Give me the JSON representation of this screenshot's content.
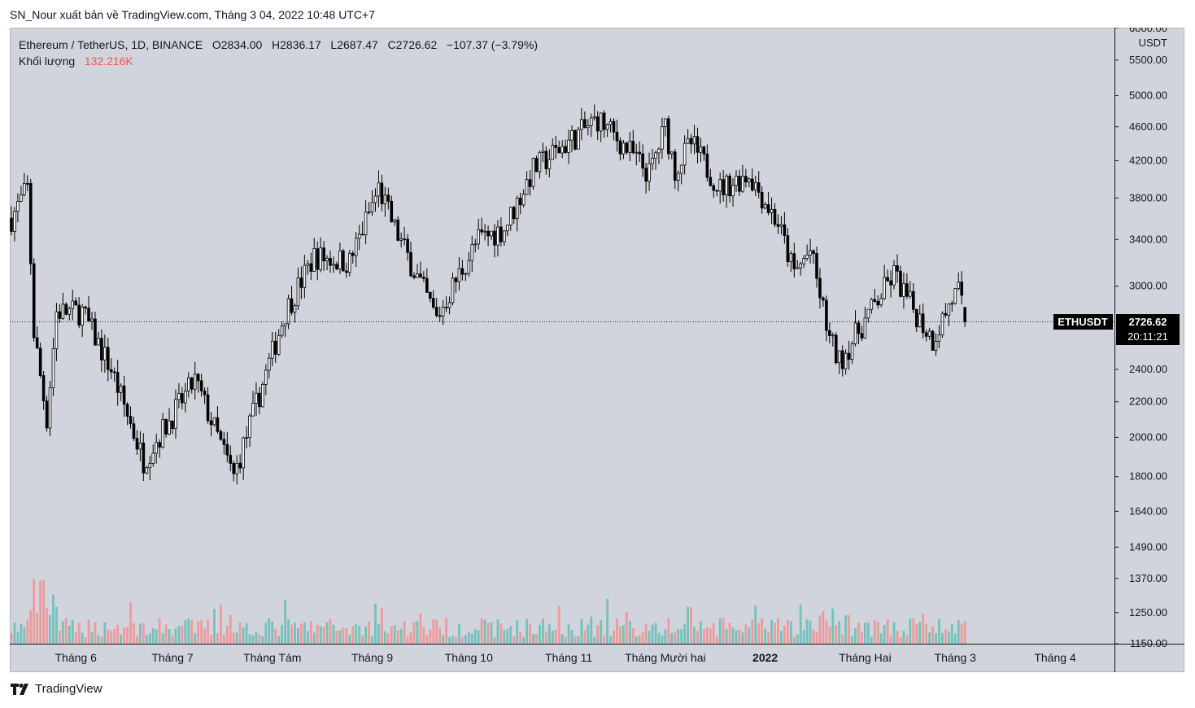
{
  "header": {
    "caption": "SN_Nour xuất bản về TradingView.com, Tháng 3 04, 2022 10:48 UTC+7"
  },
  "legend": {
    "symbol": "Ethereum / TetherUS, 1D, BINANCE",
    "o_label": "O",
    "o_value": "2834.00",
    "h_label": "H",
    "h_value": "2836.17",
    "l_label": "L",
    "l_value": "2687.47",
    "c_label": "C",
    "c_value": "2726.62",
    "change": "−107.37 (−3.79%)",
    "volume_label": "Khối lượng",
    "volume_value": "132.216K"
  },
  "price_tag": {
    "symbol": "ETHUSDT",
    "price": "2726.62",
    "countdown": "20:11:21"
  },
  "footer": {
    "brand": "TradingView"
  },
  "colors": {
    "background": "#d1d4dc",
    "candle": "#000000",
    "volume_up": "#73c2bb",
    "volume_down": "#ef9a9a"
  },
  "chart_data": {
    "type": "candlestick",
    "symbol": "ETHUSDT",
    "interval": "1D",
    "yscale": "log",
    "y_axis_unit": "USDT",
    "ylim": [
      1150,
      6000
    ],
    "y_ticks": [
      "6000.00",
      "5500.00",
      "5000.00",
      "4600.00",
      "4200.00",
      "3800.00",
      "3400.00",
      "3000.00",
      "2400.00",
      "2200.00",
      "2000.00",
      "1800.00",
      "1640.00",
      "1490.00",
      "1370.00",
      "1250.00",
      "1150.00"
    ],
    "x_ticks": [
      "Tháng 6",
      "Tháng 7",
      "Tháng Tám",
      "Tháng 9",
      "Tháng 10",
      "Tháng 11",
      "Tháng Mười hai",
      "2022",
      "Tháng Hai",
      "Tháng 3",
      "Tháng 4"
    ],
    "x_ticks_bold": [
      "2022"
    ],
    "last_price": 2726.62,
    "anchors": [
      {
        "date": "2021-05-12",
        "close": 3600
      },
      {
        "date": "2021-05-17",
        "close": 3900
      },
      {
        "date": "2021-05-19",
        "close": 2650
      },
      {
        "date": "2021-05-23",
        "close": 2100
      },
      {
        "date": "2021-05-26",
        "close": 2800
      },
      {
        "date": "2021-06-03",
        "close": 2800
      },
      {
        "date": "2021-06-12",
        "close": 2400
      },
      {
        "date": "2021-06-22",
        "close": 1880
      },
      {
        "date": "2021-07-08",
        "close": 2330
      },
      {
        "date": "2021-07-20",
        "close": 1800
      },
      {
        "date": "2021-08-05",
        "close": 2800
      },
      {
        "date": "2021-08-14",
        "close": 3250
      },
      {
        "date": "2021-08-25",
        "close": 3200
      },
      {
        "date": "2021-09-03",
        "close": 3900
      },
      {
        "date": "2021-09-08",
        "close": 3500
      },
      {
        "date": "2021-09-21",
        "close": 2750
      },
      {
        "date": "2021-09-27",
        "close": 3050
      },
      {
        "date": "2021-10-04",
        "close": 3400
      },
      {
        "date": "2021-10-12",
        "close": 3500
      },
      {
        "date": "2021-10-21",
        "close": 4100
      },
      {
        "date": "2021-10-28",
        "close": 4300
      },
      {
        "date": "2021-11-10",
        "close": 4700
      },
      {
        "date": "2021-11-20",
        "close": 4300
      },
      {
        "date": "2021-11-26",
        "close": 4050
      },
      {
        "date": "2021-12-01",
        "close": 4600
      },
      {
        "date": "2021-12-04",
        "close": 4100
      },
      {
        "date": "2021-12-09",
        "close": 4400
      },
      {
        "date": "2021-12-18",
        "close": 3900
      },
      {
        "date": "2021-12-27",
        "close": 4050
      },
      {
        "date": "2022-01-05",
        "close": 3550
      },
      {
        "date": "2022-01-10",
        "close": 3100
      },
      {
        "date": "2022-01-15",
        "close": 3300
      },
      {
        "date": "2022-01-21",
        "close": 2600
      },
      {
        "date": "2022-01-24",
        "close": 2450
      },
      {
        "date": "2022-02-10",
        "close": 3100
      },
      {
        "date": "2022-02-14",
        "close": 2900
      },
      {
        "date": "2022-02-22",
        "close": 2600
      },
      {
        "date": "2022-02-28",
        "close": 2900
      },
      {
        "date": "2022-03-02",
        "close": 2950
      },
      {
        "date": "2022-03-04",
        "close": 2726.62
      }
    ]
  }
}
